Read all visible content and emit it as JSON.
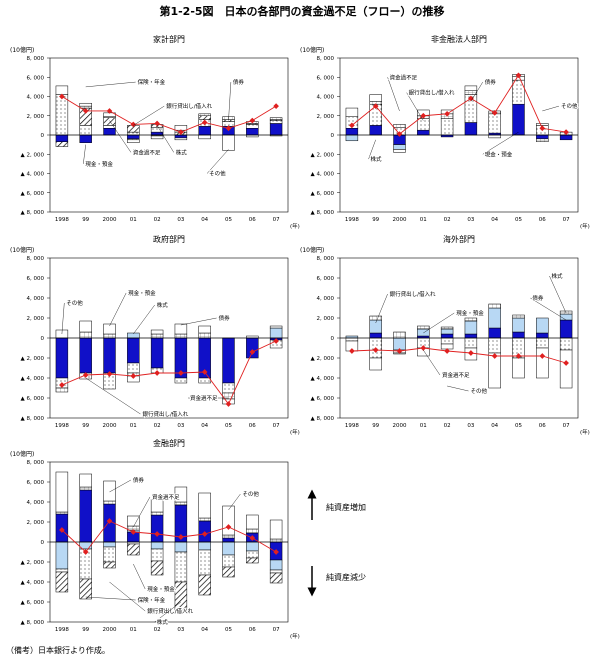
{
  "figure": {
    "title": "第1-2-5図　日本の各部門の資金過不足（フロー）の推移",
    "source": "（備考）日本銀行より作成。",
    "arrow_up_label": "純資産増加",
    "arrow_down_label": "純資産減少"
  },
  "colors": {
    "securities": "#1010c8",
    "loans": "#b8d8f4",
    "cash": "#ffffff",
    "insurance": "#ffffff",
    "equities": "#ffffff",
    "other": "#ffffff",
    "balance_line": "#e02020"
  },
  "legend_keys": [
    {
      "name": "債券",
      "fill": "#1010c8"
    },
    {
      "name": "貸出",
      "fill": "#b8d8f4"
    },
    {
      "name": "現金・預金",
      "pattern": "dots"
    },
    {
      "name": "保険・年金",
      "pattern": "hatch"
    },
    {
      "name": "株式",
      "pattern": "grid"
    },
    {
      "name": "その他",
      "fill": "#ffffff"
    }
  ],
  "chart_data": [
    {
      "type": "bar",
      "title": "家計部門",
      "unit": "(10億円)",
      "x_unit": "(年)",
      "categories": [
        "1998",
        "99",
        "2000",
        "01",
        "02",
        "03",
        "04",
        "05",
        "06",
        "07"
      ],
      "ylim": [
        -8000,
        8000
      ],
      "yticks": [
        8000,
        6000,
        4000,
        2000,
        0,
        -2000,
        -4000,
        -6000,
        -8000
      ],
      "ytick_labels": [
        "8, 000",
        "6, 000",
        "4, 000",
        "2, 000",
        "0",
        "▲ 2, 000",
        "▲ 4, 000",
        "▲ 6, 000",
        "▲ 8, 000"
      ],
      "series": [
        {
          "name": "債券",
          "values": [
            -700,
            -800,
            700,
            -400,
            300,
            -300,
            900,
            900,
            700,
            1200
          ]
        },
        {
          "name": "貸出",
          "values": [
            0,
            0,
            0,
            0,
            0,
            0,
            0,
            0,
            0,
            0
          ]
        },
        {
          "name": "現金・預金",
          "values": [
            4200,
            1000,
            300,
            300,
            500,
            -200,
            700,
            500,
            400,
            300
          ]
        },
        {
          "name": "保険・年金",
          "values": [
            -500,
            1800,
            800,
            700,
            300,
            300,
            400,
            200,
            100,
            100
          ]
        },
        {
          "name": "株式",
          "values": [
            0,
            200,
            100,
            -100,
            -100,
            200,
            200,
            300,
            200,
            200
          ]
        },
        {
          "name": "その他",
          "values": [
            900,
            300,
            400,
            -300,
            -300,
            500,
            -400,
            -1600,
            -200,
            -100
          ]
        }
      ],
      "balance": [
        4000,
        2500,
        2500,
        1100,
        1200,
        300,
        1300,
        700,
        1500,
        3000
      ],
      "annotations": [
        {
          "text": "保険・年金",
          "cat": 1,
          "y": 5000,
          "tx": 0.36,
          "ty": 5500
        },
        {
          "text": "債券",
          "cat": 7,
          "y": 1500,
          "tx": 0.76,
          "ty": 5500
        },
        {
          "text": "銀行貸出し/借入れ",
          "cat": 3,
          "y": 1000,
          "tx": 0.48,
          "ty": 3000
        },
        {
          "text": "資金過不足",
          "cat": 2,
          "y": 1500,
          "tx": 0.34,
          "ty": -1800
        },
        {
          "text": "株式",
          "cat": 4,
          "y": 1000,
          "tx": 0.52,
          "ty": -1800
        },
        {
          "text": "現金・預金",
          "cat": 1,
          "y": -1000,
          "tx": 0.14,
          "ty": -3000
        },
        {
          "text": "その他",
          "cat": 7,
          "y": -1500,
          "tx": 0.66,
          "ty": -4000
        }
      ]
    },
    {
      "type": "bar",
      "title": "非金融法人部門",
      "unit": "(10億円)",
      "x_unit": "(年)",
      "categories": [
        "1998",
        "99",
        "2000",
        "01",
        "02",
        "03",
        "04",
        "05",
        "06",
        "07"
      ],
      "ylim": [
        -8000,
        8000
      ],
      "yticks": [
        8000,
        6000,
        4000,
        2000,
        0,
        -2000,
        -4000,
        -6000,
        -8000
      ],
      "ytick_labels": [
        "8, 000",
        "6, 000",
        "4, 000",
        "2, 000",
        "0",
        "▲ 2, 000",
        "▲ 4, 000",
        "▲ 6, 000",
        "▲ 8, 000"
      ],
      "series": [
        {
          "name": "債券",
          "values": [
            700,
            1000,
            -1000,
            500,
            -200,
            1300,
            200,
            3200,
            -400,
            -500
          ]
        },
        {
          "name": "貸出",
          "values": [
            -600,
            0,
            -500,
            0,
            0,
            0,
            0,
            0,
            0,
            0
          ]
        },
        {
          "name": "現金・預金",
          "values": [
            1200,
            2200,
            800,
            1200,
            1700,
            2900,
            2000,
            2500,
            1000,
            0
          ]
        },
        {
          "name": "保険・年金",
          "values": [
            0,
            0,
            0,
            0,
            0,
            0,
            0,
            0,
            0,
            0
          ]
        },
        {
          "name": "株式",
          "values": [
            0,
            300,
            300,
            300,
            500,
            400,
            300,
            400,
            -300,
            300
          ]
        },
        {
          "name": "その他",
          "values": [
            900,
            700,
            -300,
            600,
            400,
            500,
            -300,
            200,
            200,
            0
          ]
        }
      ],
      "balance": [
        1000,
        3000,
        100,
        2000,
        2200,
        3800,
        2300,
        6200,
        700,
        300
      ],
      "annotations": [
        {
          "text": "資金過不足",
          "cat": 2,
          "y": 2500,
          "tx": 0.2,
          "ty": 6000
        },
        {
          "text": "銀行貸出し/借入れ",
          "cat": 3,
          "y": 1500,
          "tx": 0.28,
          "ty": 4400
        },
        {
          "text": "債券",
          "cat": 5,
          "y": 3500,
          "tx": 0.6,
          "ty": 5500
        },
        {
          "text": "その他",
          "cat": 8,
          "y": 2500,
          "tx": 0.92,
          "ty": 3000
        },
        {
          "text": "株式",
          "cat": 1,
          "y": -500,
          "tx": 0.12,
          "ty": -2500
        },
        {
          "text": "現金・預金",
          "cat": 7,
          "y": 300,
          "tx": 0.6,
          "ty": -2000
        }
      ]
    },
    {
      "type": "bar",
      "title": "政府部門",
      "unit": "(10億円)",
      "x_unit": "(年)",
      "categories": [
        "1998",
        "99",
        "2000",
        "01",
        "02",
        "03",
        "04",
        "05",
        "06",
        "07"
      ],
      "ylim": [
        -8000,
        8000
      ],
      "yticks": [
        8000,
        6000,
        4000,
        2000,
        0,
        -2000,
        -4000,
        -6000,
        -8000
      ],
      "ytick_labels": [
        "8, 000",
        "6, 000",
        "4, 000",
        "2, 000",
        "0",
        "▲ 2, 000",
        "▲ 4, 000",
        "▲ 6, 000",
        "▲ 8, 000"
      ],
      "series": [
        {
          "name": "債券",
          "values": [
            -4000,
            -3500,
            -3500,
            -2500,
            -3000,
            -4000,
            -4000,
            -4500,
            -2000,
            -200
          ]
        },
        {
          "name": "貸出",
          "values": [
            0,
            0,
            0,
            500,
            0,
            0,
            0,
            0,
            0,
            1000
          ]
        },
        {
          "name": "現金・預金",
          "values": [
            -1000,
            -600,
            -1600,
            -1000,
            -500,
            -500,
            -500,
            -1000,
            0,
            -800
          ]
        },
        {
          "name": "保険・年金",
          "values": [
            0,
            0,
            0,
            0,
            0,
            0,
            0,
            0,
            0,
            0
          ]
        },
        {
          "name": "株式",
          "values": [
            -400,
            600,
            400,
            -300,
            400,
            400,
            500,
            -600,
            0,
            0
          ]
        },
        {
          "name": "その他",
          "values": [
            800,
            1100,
            1000,
            -600,
            400,
            1000,
            700,
            -500,
            200,
            200
          ]
        }
      ],
      "balance": [
        -4700,
        -3700,
        -3600,
        -3800,
        -3500,
        -3500,
        -3400,
        -6600,
        -1400,
        -300
      ],
      "annotations": [
        {
          "text": "現金・預金",
          "cat": 2,
          "y": 1200,
          "tx": 0.32,
          "ty": 4500
        },
        {
          "text": "その他",
          "cat": 0,
          "y": 400,
          "tx": 0.06,
          "ty": 3500
        },
        {
          "text": "株式",
          "cat": 3,
          "y": 400,
          "tx": 0.44,
          "ty": 3300
        },
        {
          "text": "債券",
          "cat": 5,
          "y": 1300,
          "tx": 0.7,
          "ty": 2000
        },
        {
          "text": "資金過不足",
          "cat": 7,
          "y": -6000,
          "tx": 0.58,
          "ty": -6000
        },
        {
          "text": "銀行貸出し/借入れ",
          "cat": 1,
          "y": -4000,
          "tx": 0.38,
          "ty": -7600
        }
      ]
    },
    {
      "type": "bar",
      "title": "海外部門",
      "unit": "(10億円)",
      "x_unit": "(年)",
      "categories": [
        "1998",
        "99",
        "2000",
        "01",
        "02",
        "03",
        "04",
        "05",
        "06",
        "07"
      ],
      "ylim": [
        -8000,
        8000
      ],
      "yticks": [
        8000,
        6000,
        4000,
        2000,
        0,
        -2000,
        -4000,
        -6000,
        -8000
      ],
      "ytick_labels": [
        "8, 000",
        "6, 000",
        "4, 000",
        "2, 000",
        "0",
        "▲ 2, 000",
        "▲ 4, 000",
        "▲ 6, 000",
        "▲ 8, 000"
      ],
      "series": [
        {
          "name": "債券",
          "values": [
            0,
            500,
            0,
            200,
            400,
            400,
            1000,
            600,
            500,
            1800
          ]
        },
        {
          "name": "貸出",
          "values": [
            200,
            1300,
            -1200,
            700,
            500,
            1300,
            2000,
            1400,
            1500,
            600
          ]
        },
        {
          "name": "現金・預金",
          "values": [
            -300,
            -2000,
            -300,
            -1000,
            -600,
            -1000,
            -1500,
            -2000,
            -1000,
            -1200
          ]
        },
        {
          "name": "保険・年金",
          "values": [
            0,
            0,
            0,
            0,
            0,
            0,
            0,
            0,
            0,
            0
          ]
        },
        {
          "name": "株式",
          "values": [
            0,
            400,
            600,
            300,
            200,
            300,
            400,
            300,
            0,
            300
          ]
        },
        {
          "name": "その他",
          "values": [
            -1000,
            -1200,
            -100,
            -800,
            -500,
            -1200,
            -3500,
            -2000,
            -3000,
            -3800
          ]
        }
      ],
      "balance": [
        -1300,
        -1200,
        -1300,
        -1000,
        -1300,
        -1500,
        -1800,
        -1800,
        -1800,
        -2500
      ],
      "annotations": [
        {
          "text": "株式",
          "cat": 9,
          "y": 2500,
          "tx": 0.88,
          "ty": 6200
        },
        {
          "text": "銀行貸出し/借入れ",
          "cat": 1,
          "y": 1500,
          "tx": 0.2,
          "ty": 4400
        },
        {
          "text": "債券",
          "cat": 9,
          "y": 1800,
          "tx": 0.8,
          "ty": 4000
        },
        {
          "text": "現金・預金",
          "cat": 3,
          "y": 500,
          "tx": 0.48,
          "ty": 2500
        },
        {
          "text": "資金過不足",
          "cat": 3,
          "y": -1200,
          "tx": 0.42,
          "ty": -3700
        },
        {
          "text": "その他",
          "cat": 4,
          "y": -4800,
          "tx": 0.54,
          "ty": -5300
        }
      ]
    },
    {
      "type": "bar",
      "title": "金融部門",
      "unit": "(10億円)",
      "x_unit": "(年)",
      "categories": [
        "1998",
        "99",
        "2000",
        "01",
        "02",
        "03",
        "04",
        "05",
        "06",
        "07"
      ],
      "ylim": [
        -8000,
        8000
      ],
      "yticks": [
        8000,
        6000,
        4000,
        2000,
        0,
        -2000,
        -4000,
        -6000,
        -8000
      ],
      "ytick_labels": [
        "8, 000",
        "6, 000",
        "4, 000",
        "2, 000",
        "0",
        "▲ 2, 000",
        "▲ 4, 000",
        "▲ 6, 000",
        "▲ 8, 000"
      ],
      "series": [
        {
          "name": "債券",
          "values": [
            2800,
            5200,
            3800,
            1000,
            2700,
            3700,
            2100,
            400,
            900,
            -1800
          ]
        },
        {
          "name": "貸出",
          "values": [
            -2700,
            -700,
            -500,
            200,
            -700,
            -1000,
            -800,
            -1300,
            -900,
            -1000
          ]
        },
        {
          "name": "現金・預金",
          "values": [
            -300,
            -3000,
            -1500,
            -200,
            -1200,
            -3000,
            -2500,
            -1200,
            -700,
            -300
          ]
        },
        {
          "name": "保険・年金",
          "values": [
            -2000,
            -2000,
            -600,
            -1100,
            -1400,
            -2800,
            -2000,
            -1000,
            -500,
            -1000
          ]
        },
        {
          "name": "株式",
          "values": [
            200,
            300,
            300,
            400,
            300,
            300,
            300,
            300,
            400,
            300
          ]
        },
        {
          "name": "その他",
          "values": [
            4000,
            1300,
            2000,
            1000,
            1300,
            1500,
            2500,
            2900,
            1400,
            1900
          ]
        }
      ],
      "balance": [
        1200,
        -1000,
        2100,
        1000,
        800,
        500,
        800,
        1500,
        400,
        -1000
      ],
      "annotations": [
        {
          "text": "債券",
          "cat": 2,
          "y": 5000,
          "tx": 0.34,
          "ty": 6200
        },
        {
          "text": "資金過不足",
          "cat": 3,
          "y": 1500,
          "tx": 0.42,
          "ty": 4500
        },
        {
          "text": "その他",
          "cat": 7,
          "y": 3200,
          "tx": 0.8,
          "ty": 4800
        },
        {
          "text": "現金・預金",
          "cat": 3,
          "y": -2200,
          "tx": 0.4,
          "ty": -4700
        },
        {
          "text": "保険・年金",
          "cat": 1,
          "y": -5500,
          "tx": 0.36,
          "ty": -5800
        },
        {
          "text": "銀行貸出し/借入れ",
          "cat": 2,
          "y": -4000,
          "tx": 0.4,
          "ty": -6900
        },
        {
          "text": "株式",
          "cat": 5,
          "y": -6000,
          "tx": 0.44,
          "ty": -8000
        }
      ]
    }
  ]
}
